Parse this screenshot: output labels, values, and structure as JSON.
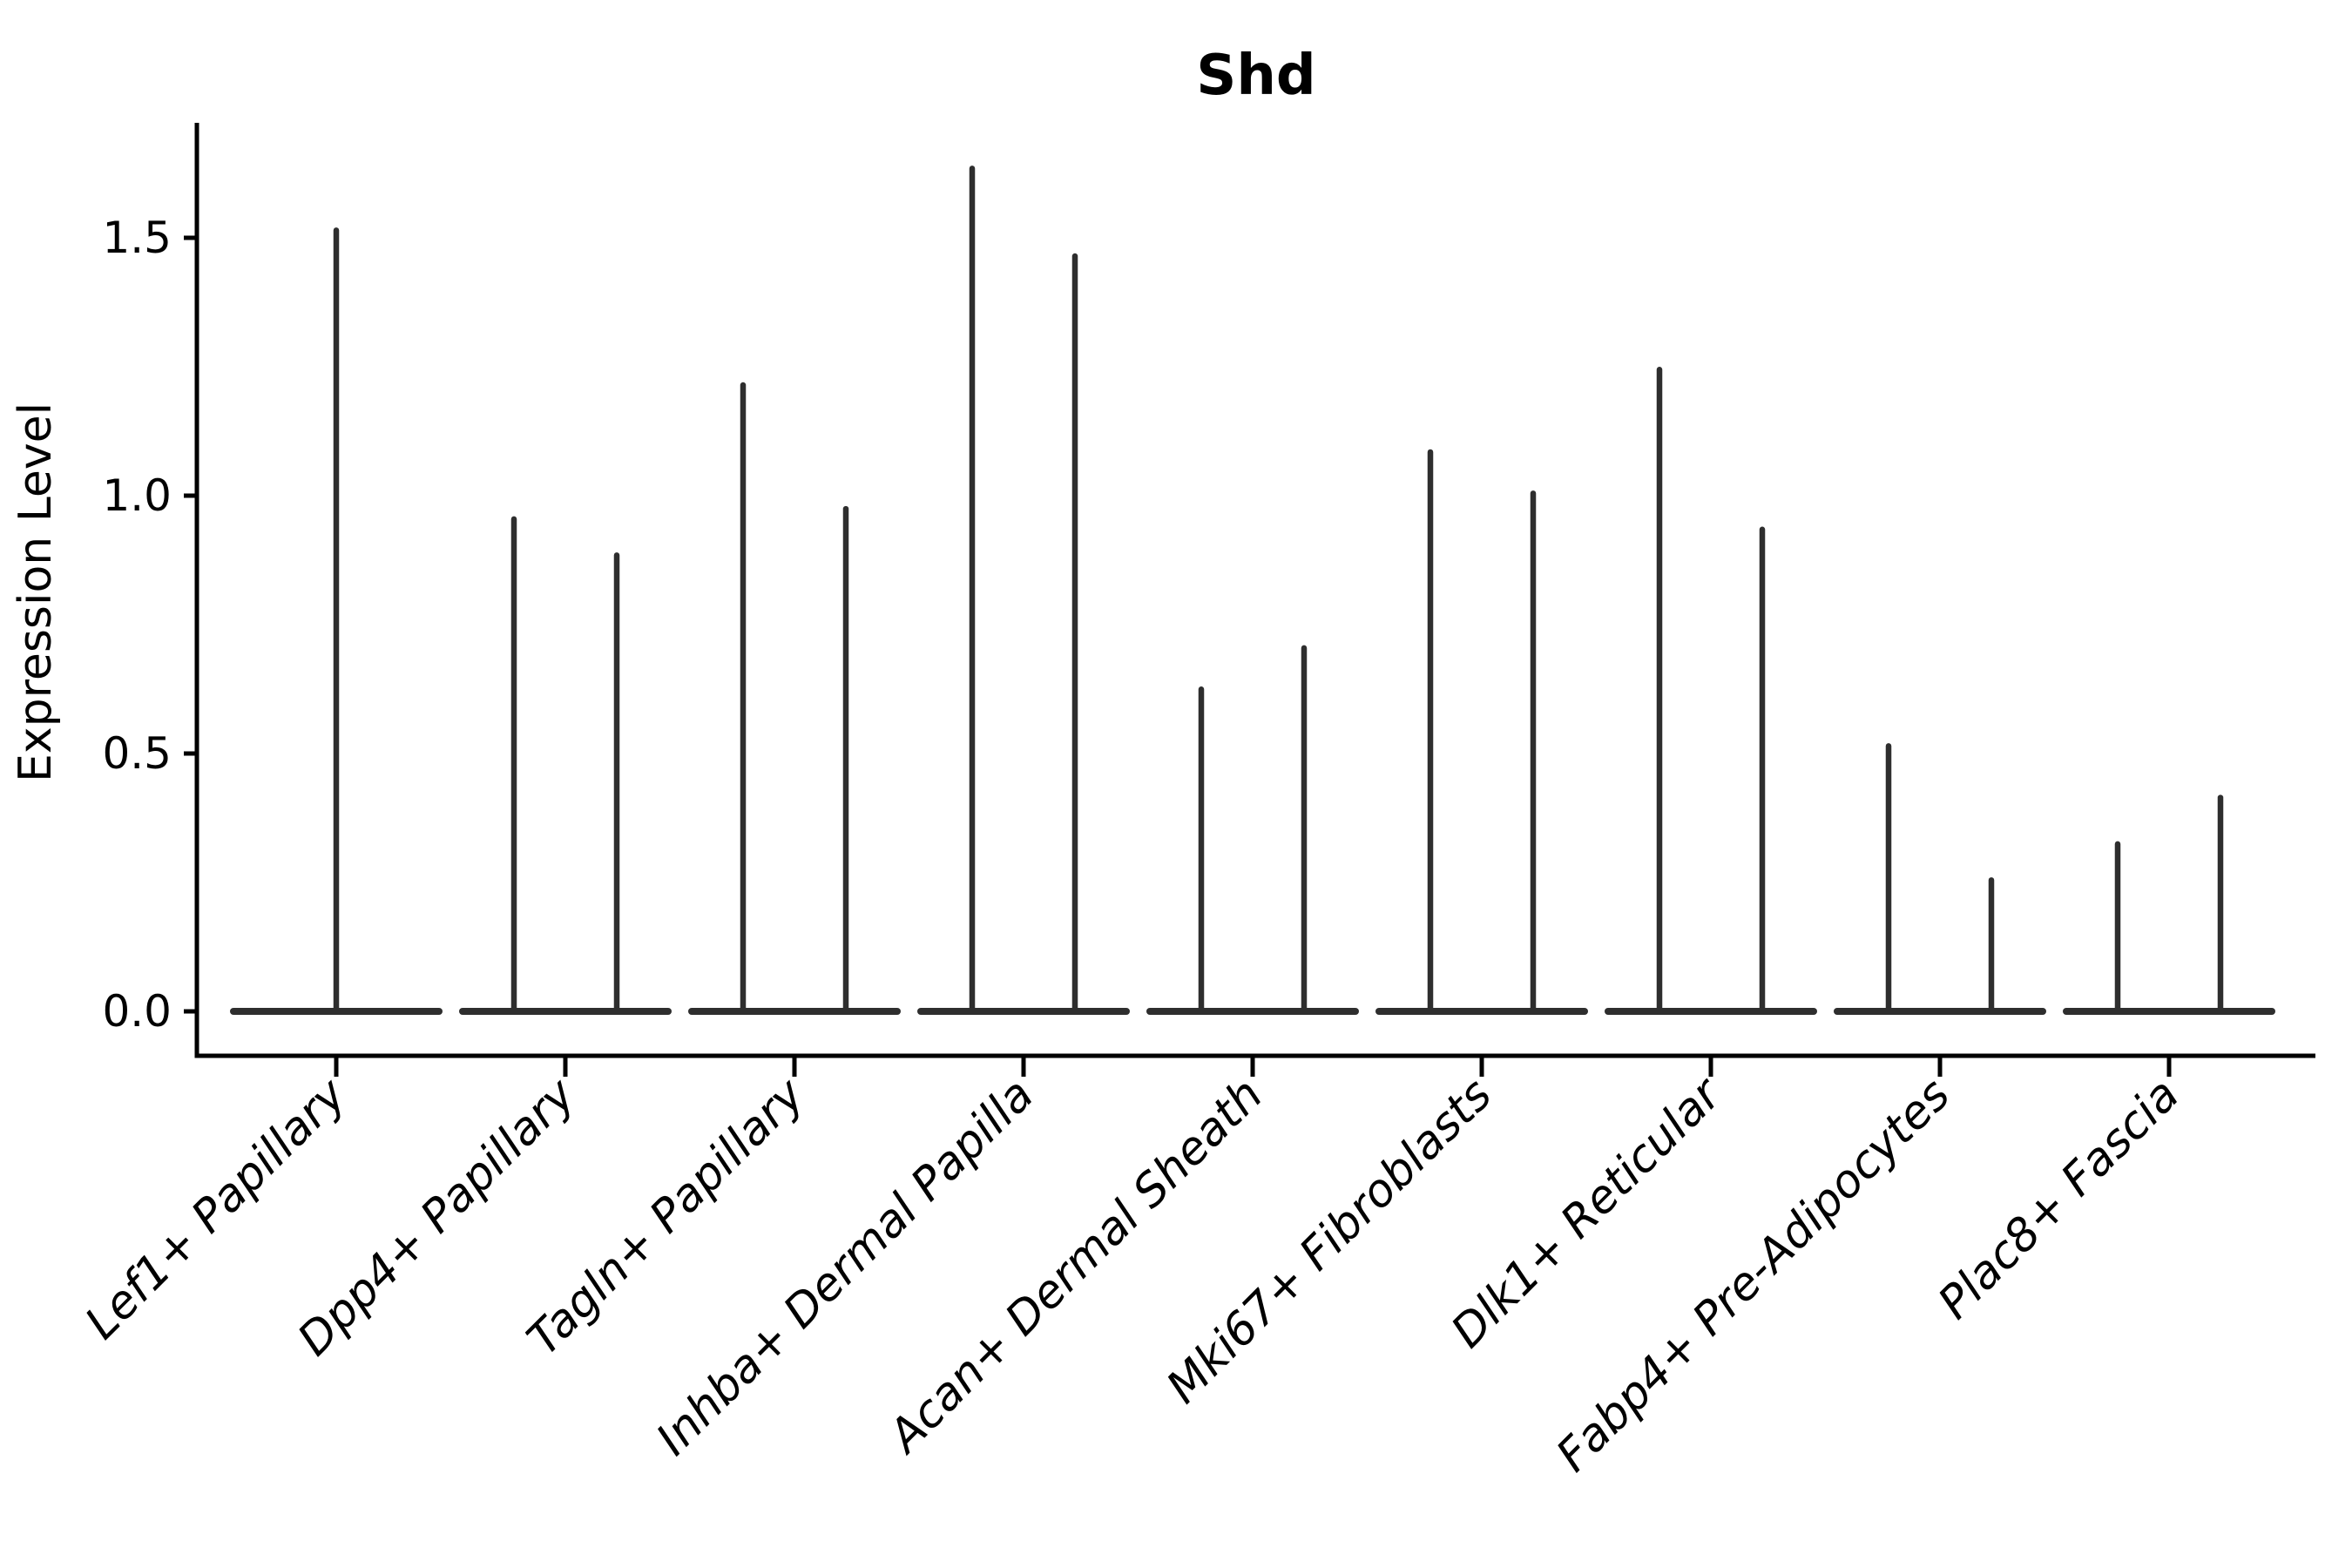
{
  "chart_data": {
    "type": "violin",
    "title": "Shd",
    "xlabel": "",
    "ylabel": "Expression Level",
    "ylim": [
      0.0,
      1.72
    ],
    "yticks": [
      {
        "value": 0.0,
        "label": "0.0"
      },
      {
        "value": 0.5,
        "label": "0.5"
      },
      {
        "value": 1.0,
        "label": "1.0"
      },
      {
        "value": 1.5,
        "label": "1.5"
      }
    ],
    "grid": false,
    "legend": "none",
    "x_tick_rotation_deg": 45,
    "description": "Violin plot of gene expression; each cluster shows near-zero-width violins collapsed at 0 with thin spikes up to the maximum expression value. Most clusters contain two violins side by side; the first cluster contains one centered violin.",
    "categories": [
      "Lef1+ Papillary",
      "Dpp4+ Papillary",
      "Tagln+ Papillary",
      "Inhba+ Dermal Papilla",
      "Acan+ Dermal Sheath",
      "Mki67+ Fibroblasts",
      "Dlk1+ Reticular",
      "Fabp4+ Pre-Adipocytes",
      "Plac8+ Fascia"
    ],
    "violin_max_values": [
      [
        1.52
      ],
      [
        0.96,
        0.89
      ],
      [
        1.22,
        0.98
      ],
      [
        1.64,
        1.47
      ],
      [
        0.63,
        0.71
      ],
      [
        1.09,
        1.01
      ],
      [
        1.25,
        0.94
      ],
      [
        0.52,
        0.26
      ],
      [
        0.33,
        0.42
      ]
    ],
    "baseline_value": 0.0,
    "colors": {
      "violin_ink": "#2e2e2e",
      "axis_ink": "#000000",
      "background": "#ffffff"
    }
  }
}
